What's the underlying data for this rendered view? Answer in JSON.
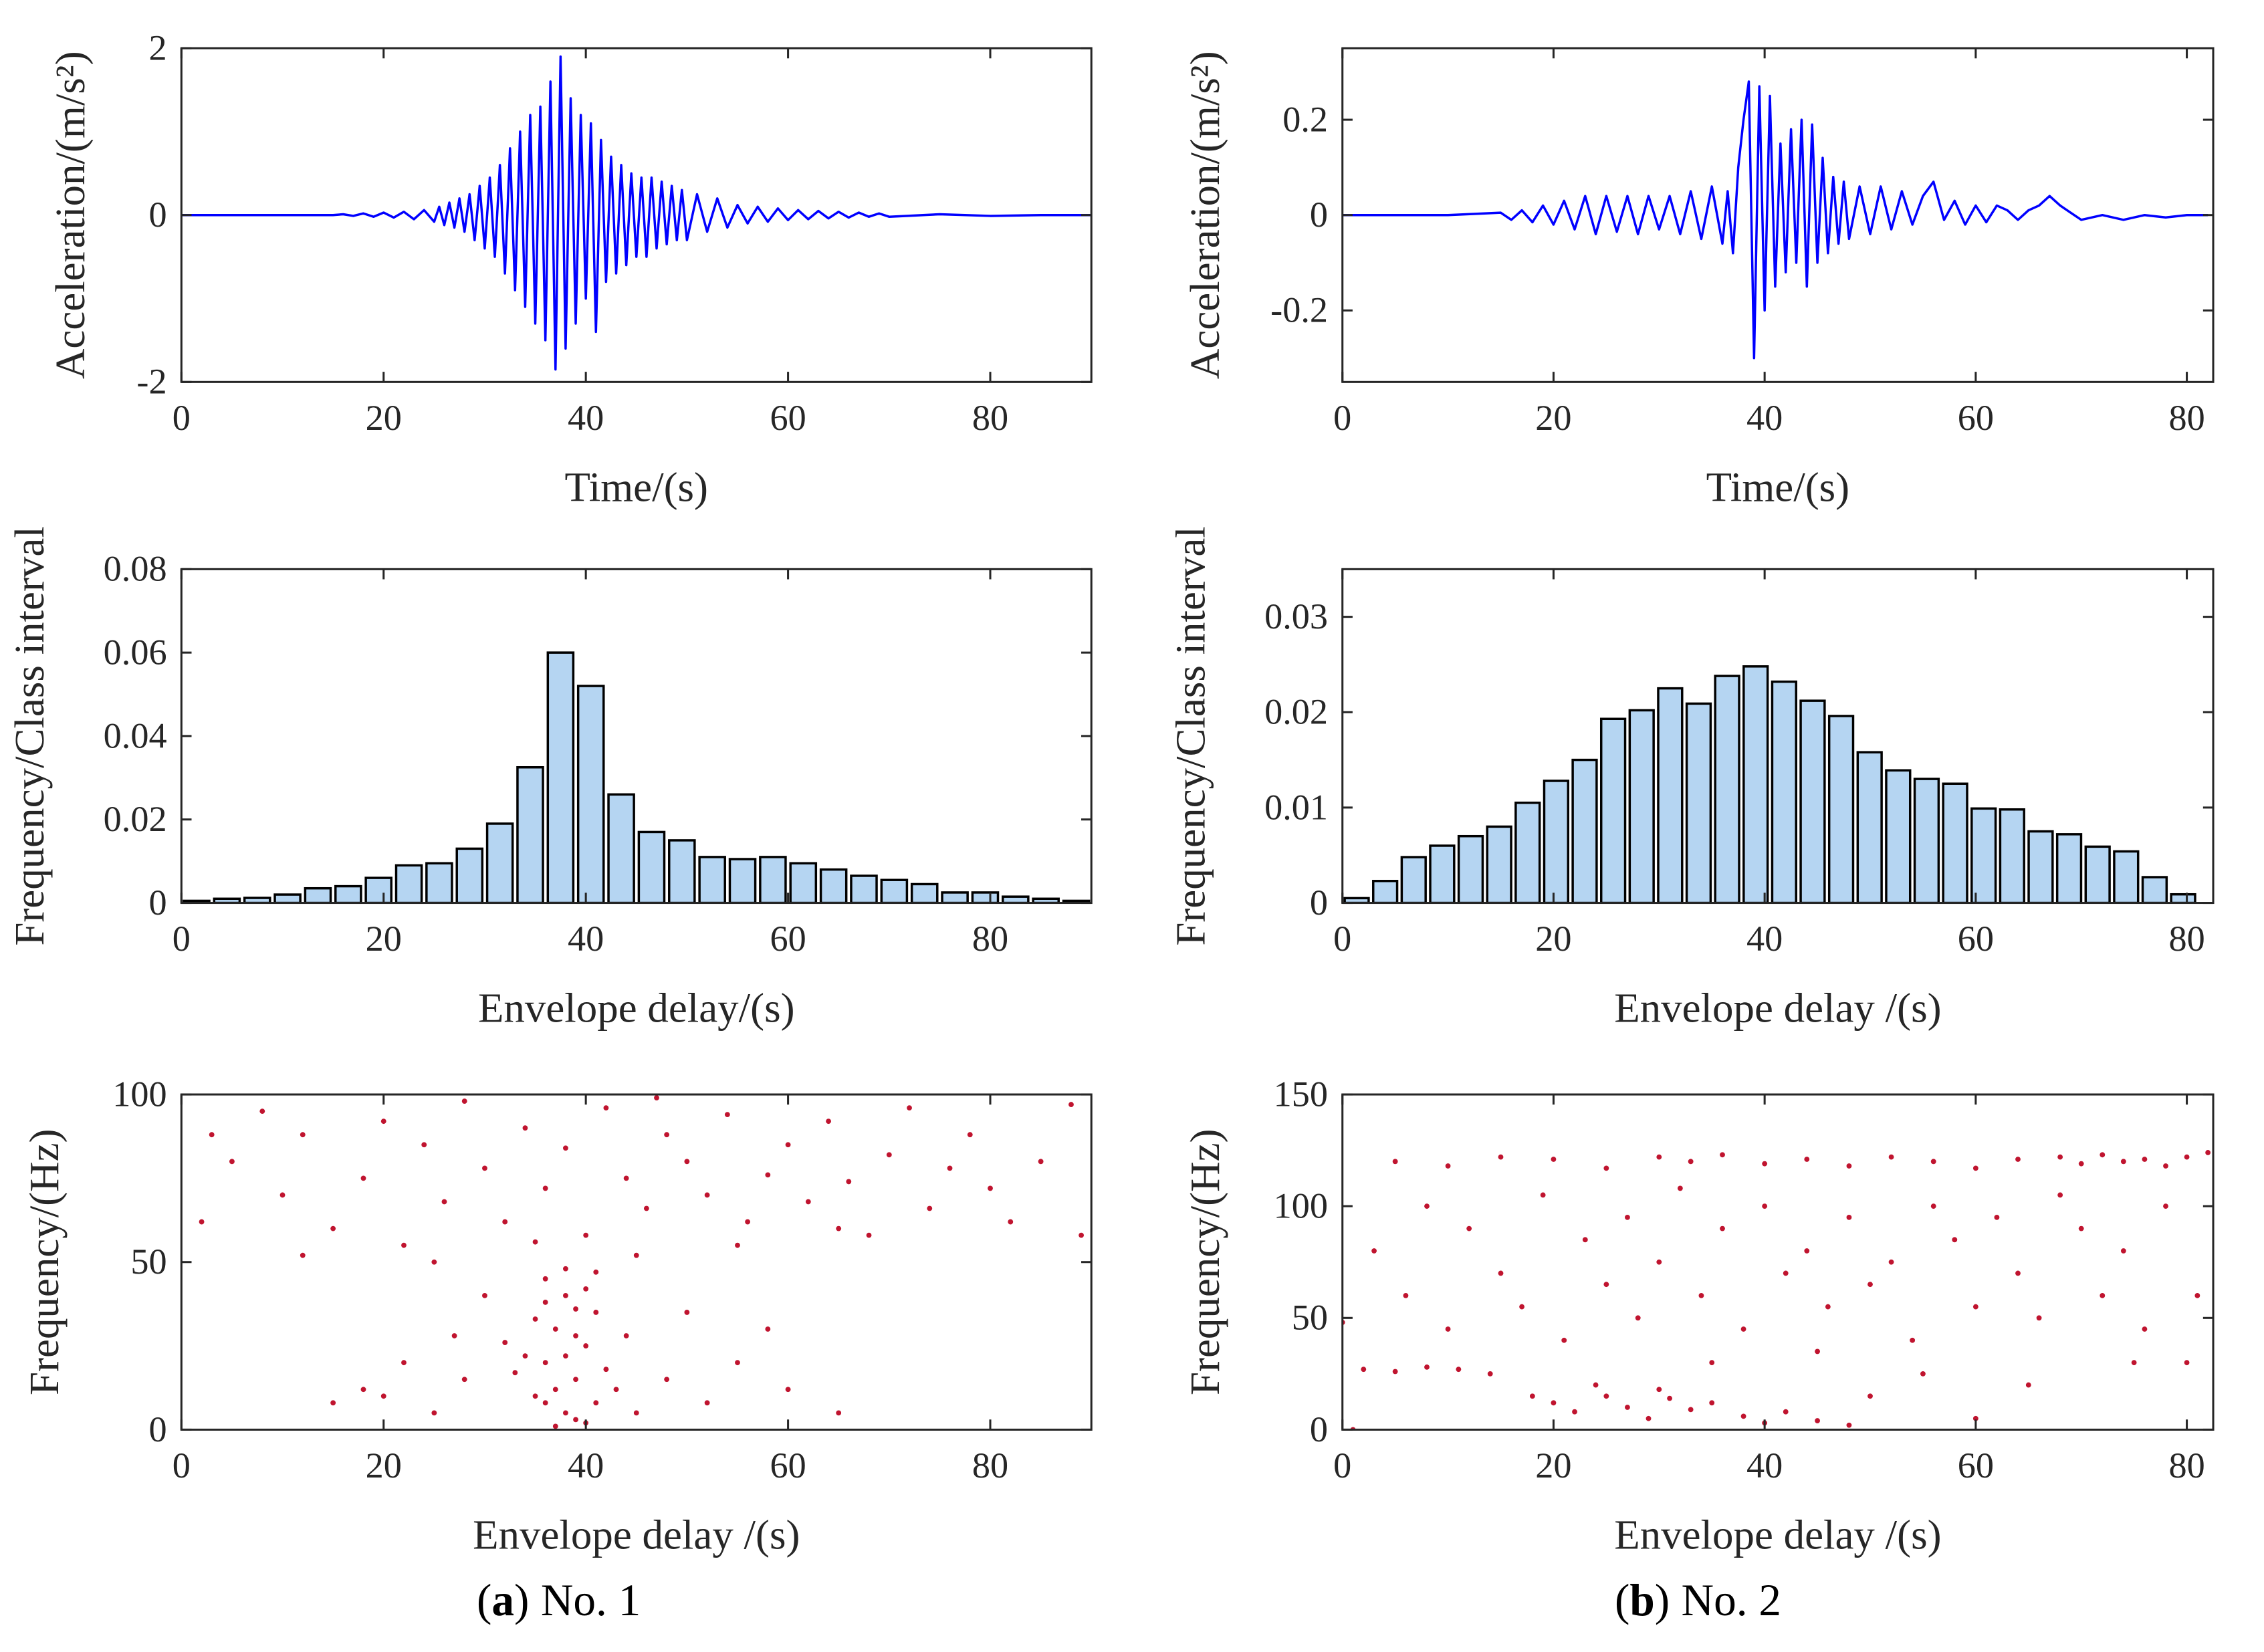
{
  "chart_data": [
    {
      "type": "line",
      "ylabel": "Acceleration/(m/s²)",
      "xlabel": "Time/(s)",
      "xlim": [
        0,
        90
      ],
      "xticks": [
        0,
        20,
        40,
        60,
        80
      ],
      "ylim": [
        -2,
        2
      ],
      "yticks": [
        -2,
        0,
        2
      ],
      "series": [
        {
          "color": "#0000ff",
          "x": [
            0,
            5,
            10,
            15,
            16,
            17,
            18,
            19,
            20,
            21,
            22,
            23,
            24,
            25,
            25.5,
            26,
            26.5,
            27,
            27.5,
            28,
            28.5,
            29,
            29.5,
            30,
            30.5,
            31,
            31.5,
            32,
            32.5,
            33,
            33.5,
            34,
            34.5,
            35,
            35.5,
            36,
            36.5,
            37,
            37.5,
            38,
            38.5,
            39,
            39.5,
            40,
            40.5,
            41,
            41.5,
            42,
            42.5,
            43,
            43.5,
            44,
            44.5,
            45,
            45.5,
            46,
            46.5,
            47,
            47.5,
            48,
            48.5,
            49,
            49.5,
            50,
            51,
            52,
            53,
            54,
            55,
            56,
            57,
            58,
            59,
            60,
            61,
            62,
            63,
            64,
            65,
            66,
            67,
            68,
            69,
            70,
            75,
            80,
            85,
            90
          ],
          "values": [
            0,
            0,
            0,
            0,
            0.01,
            -0.01,
            0.02,
            -0.02,
            0.03,
            -0.03,
            0.04,
            -0.05,
            0.06,
            -0.08,
            0.1,
            -0.12,
            0.15,
            -0.15,
            0.2,
            -0.2,
            0.25,
            -0.3,
            0.35,
            -0.4,
            0.45,
            -0.5,
            0.6,
            -0.7,
            0.8,
            -0.9,
            1.0,
            -1.1,
            1.2,
            -1.3,
            1.3,
            -1.5,
            1.6,
            -1.85,
            1.9,
            -1.6,
            1.4,
            -1.3,
            1.2,
            -1.0,
            1.1,
            -1.4,
            0.9,
            -0.8,
            0.7,
            -0.7,
            0.6,
            -0.6,
            0.5,
            -0.5,
            0.45,
            -0.5,
            0.45,
            -0.4,
            0.4,
            -0.35,
            0.35,
            -0.3,
            0.3,
            -0.3,
            0.25,
            -0.2,
            0.2,
            -0.15,
            0.12,
            -0.1,
            0.1,
            -0.08,
            0.08,
            -0.06,
            0.06,
            -0.05,
            0.05,
            -0.04,
            0.04,
            -0.03,
            0.03,
            -0.02,
            0.02,
            -0.02,
            0.01,
            -0.01,
            0,
            0
          ]
        }
      ]
    },
    {
      "type": "line",
      "ylabel": "Acceleration/(m/s²)",
      "xlabel": "Time/(s)",
      "xlim": [
        0,
        82.5
      ],
      "xticks": [
        0,
        20,
        40,
        60,
        80
      ],
      "ylim": [
        -0.35,
        0.35
      ],
      "yticks": [
        -0.2,
        0,
        0.2
      ],
      "series": [
        {
          "color": "#0000ff",
          "x": [
            0,
            5,
            10,
            15,
            16,
            17,
            18,
            19,
            20,
            21,
            22,
            23,
            24,
            25,
            26,
            27,
            28,
            29,
            30,
            31,
            32,
            33,
            34,
            35,
            36,
            36.5,
            37,
            37.5,
            38,
            38.5,
            39,
            39.5,
            40,
            40.5,
            41,
            41.5,
            42,
            42.5,
            43,
            43.5,
            44,
            44.5,
            45,
            45.5,
            46,
            46.5,
            47,
            47.5,
            48,
            49,
            50,
            51,
            52,
            53,
            54,
            55,
            56,
            57,
            58,
            59,
            60,
            61,
            62,
            63,
            64,
            65,
            66,
            67,
            68,
            69,
            70,
            72,
            74,
            76,
            78,
            80,
            82
          ],
          "values": [
            0,
            0,
            0,
            0.005,
            -0.01,
            0.01,
            -0.015,
            0.02,
            -0.02,
            0.03,
            -0.03,
            0.04,
            -0.04,
            0.04,
            -0.035,
            0.04,
            -0.04,
            0.04,
            -0.03,
            0.04,
            -0.04,
            0.05,
            -0.05,
            0.06,
            -0.06,
            0.05,
            -0.08,
            0.1,
            0.2,
            0.28,
            -0.3,
            0.27,
            -0.2,
            0.25,
            -0.15,
            0.15,
            -0.12,
            0.18,
            -0.1,
            0.2,
            -0.15,
            0.19,
            -0.1,
            0.12,
            -0.08,
            0.08,
            -0.06,
            0.07,
            -0.05,
            0.06,
            -0.04,
            0.06,
            -0.03,
            0.05,
            -0.02,
            0.04,
            0.07,
            -0.01,
            0.03,
            -0.02,
            0.02,
            -0.015,
            0.02,
            0.01,
            -0.01,
            0.01,
            0.02,
            0.04,
            0.02,
            0.005,
            -0.01,
            0,
            -0.01,
            0,
            -0.005,
            0,
            0
          ]
        }
      ]
    },
    {
      "type": "histogram",
      "ylabel": "Frequency/Class interval",
      "xlabel": "Envelope delay/(s)",
      "xlim": [
        0,
        90
      ],
      "xticks": [
        0,
        20,
        40,
        60,
        80
      ],
      "ylim": [
        0,
        0.08
      ],
      "yticks": [
        0,
        0.02,
        0.04,
        0.06,
        0.08
      ],
      "color": "#b5d5f2",
      "bins": [
        0,
        3,
        6,
        9,
        12,
        15,
        18,
        21,
        24,
        27,
        30,
        33,
        36,
        39,
        42,
        45,
        48,
        51,
        54,
        57,
        60,
        63,
        66,
        69,
        72,
        75,
        78,
        81,
        84,
        87,
        90
      ],
      "values": [
        0.0005,
        0.001,
        0.0012,
        0.002,
        0.0035,
        0.004,
        0.006,
        0.009,
        0.0095,
        0.013,
        0.019,
        0.0325,
        0.06,
        0.052,
        0.026,
        0.017,
        0.015,
        0.011,
        0.0105,
        0.011,
        0.0095,
        0.008,
        0.0065,
        0.0055,
        0.0045,
        0.0025,
        0.0025,
        0.0015,
        0.001,
        0.0005
      ]
    },
    {
      "type": "histogram",
      "ylabel": "Frequency/Class interval",
      "xlabel": "Envelope delay /(s)",
      "xlim": [
        0,
        82.5
      ],
      "xticks": [
        0,
        20,
        40,
        60,
        80
      ],
      "ylim": [
        0,
        0.035
      ],
      "yticks": [
        0,
        0.01,
        0.02,
        0.03
      ],
      "color": "#b5d5f2",
      "bins": [
        0,
        2.7,
        5.4,
        8.1,
        10.8,
        13.5,
        16.2,
        18.9,
        21.6,
        24.3,
        27,
        29.7,
        32.4,
        35.1,
        37.8,
        40.5,
        43.2,
        45.9,
        48.6,
        51.3,
        54,
        56.7,
        59.4,
        62.1,
        64.8,
        67.5,
        70.2,
        72.9,
        75.6,
        78.3,
        81
      ],
      "values": [
        0.0005,
        0.0023,
        0.0048,
        0.006,
        0.007,
        0.008,
        0.0105,
        0.0128,
        0.015,
        0.0193,
        0.0202,
        0.0225,
        0.0209,
        0.0238,
        0.0248,
        0.0232,
        0.0212,
        0.0196,
        0.0158,
        0.0139,
        0.013,
        0.0125,
        0.0099,
        0.0098,
        0.0075,
        0.0072,
        0.0059,
        0.0054,
        0.0027,
        0.0009
      ]
    },
    {
      "type": "scatter",
      "ylabel": "Frequency/(Hz)",
      "xlabel": "Envelope delay /(s)",
      "xlim": [
        0,
        90
      ],
      "xticks": [
        0,
        20,
        40,
        60,
        80
      ],
      "ylim": [
        0,
        100
      ],
      "yticks": [
        0,
        50,
        100
      ],
      "series": [
        {
          "color": "#c0142f",
          "x": [
            35,
            36,
            37,
            38,
            39,
            40,
            41,
            36,
            38,
            40,
            37,
            39,
            35,
            41,
            42,
            34,
            38,
            36,
            40,
            39,
            33,
            43,
            45,
            44,
            32,
            37,
            41,
            38,
            39,
            36,
            20,
            25,
            28,
            22,
            48,
            52,
            55,
            60,
            65,
            30,
            50,
            18,
            15,
            58,
            27,
            2,
            5,
            8,
            10,
            12,
            15,
            18,
            20,
            22,
            24,
            26,
            28,
            30,
            32,
            34,
            36,
            38,
            40,
            42,
            44,
            46,
            48,
            50,
            52,
            54,
            56,
            58,
            60,
            62,
            64,
            66,
            68,
            70,
            72,
            74,
            76,
            78,
            80,
            82,
            85,
            88,
            89,
            45,
            55,
            25,
            65,
            35,
            47,
            12,
            3
          ],
          "values": [
            10,
            20,
            30,
            40,
            15,
            25,
            35,
            45,
            5,
            2,
            12,
            28,
            33,
            8,
            18,
            22,
            48,
            38,
            42,
            3,
            17,
            12,
            5,
            28,
            26,
            1,
            47,
            22,
            36,
            8,
            10,
            5,
            15,
            20,
            15,
            8,
            20,
            12,
            5,
            40,
            35,
            12,
            8,
            30,
            28,
            62,
            80,
            95,
            70,
            88,
            60,
            75,
            92,
            55,
            85,
            68,
            98,
            78,
            62,
            90,
            72,
            84,
            58,
            96,
            75,
            66,
            88,
            80,
            70,
            94,
            62,
            76,
            85,
            68,
            92,
            74,
            58,
            82,
            96,
            66,
            78,
            88,
            72,
            62,
            80,
            97,
            58,
            52,
            55,
            50,
            60,
            56,
            99,
            52,
            88
          ]
        }
      ]
    },
    {
      "type": "scatter",
      "ylabel": "Frequency/(Hz)",
      "xlabel": "Envelope delay /(s)",
      "xlim": [
        0,
        82.5
      ],
      "xticks": [
        0,
        20,
        40,
        60,
        80
      ],
      "ylim": [
        0,
        150
      ],
      "yticks": [
        0,
        50,
        100,
        150
      ],
      "series": [
        {
          "color": "#c0142f",
          "x": [
            5,
            10,
            15,
            20,
            25,
            30,
            33,
            36,
            40,
            44,
            48,
            52,
            56,
            60,
            64,
            68,
            70,
            72,
            74,
            76,
            78,
            80,
            82,
            20,
            22,
            25,
            27,
            29,
            31,
            33,
            35,
            38,
            40,
            42,
            45,
            48,
            24,
            30,
            18,
            2,
            5,
            8,
            11,
            14,
            3,
            6,
            8,
            10,
            12,
            15,
            17,
            19,
            21,
            23,
            25,
            27,
            28,
            30,
            32,
            34,
            36,
            38,
            40,
            42,
            44,
            46,
            48,
            50,
            52,
            54,
            56,
            58,
            60,
            62,
            64,
            66,
            68,
            70,
            72,
            74,
            76,
            78,
            80,
            81,
            0,
            1,
            35,
            45,
            55,
            65,
            75,
            60,
            50
          ],
          "values": [
            120,
            118,
            122,
            121,
            117,
            122,
            120,
            123,
            119,
            121,
            118,
            122,
            120,
            117,
            121,
            122,
            119,
            123,
            120,
            121,
            118,
            122,
            124,
            12,
            8,
            15,
            10,
            5,
            14,
            9,
            12,
            6,
            3,
            8,
            4,
            2,
            20,
            18,
            15,
            27,
            26,
            28,
            27,
            25,
            80,
            60,
            100,
            45,
            90,
            70,
            55,
            105,
            40,
            85,
            65,
            95,
            50,
            75,
            108,
            60,
            90,
            45,
            100,
            70,
            80,
            55,
            95,
            65,
            75,
            40,
            100,
            85,
            55,
            95,
            70,
            50,
            105,
            90,
            60,
            80,
            45,
            100,
            30,
            60,
            48,
            0,
            30,
            35,
            25,
            20,
            30,
            5,
            15
          ]
        }
      ]
    }
  ],
  "captions": [
    {
      "open": "(",
      "letter": "a",
      "close": ")",
      "text": "No. 1"
    },
    {
      "open": "(",
      "letter": "b",
      "close": ")",
      "text": "No. 2"
    }
  ]
}
